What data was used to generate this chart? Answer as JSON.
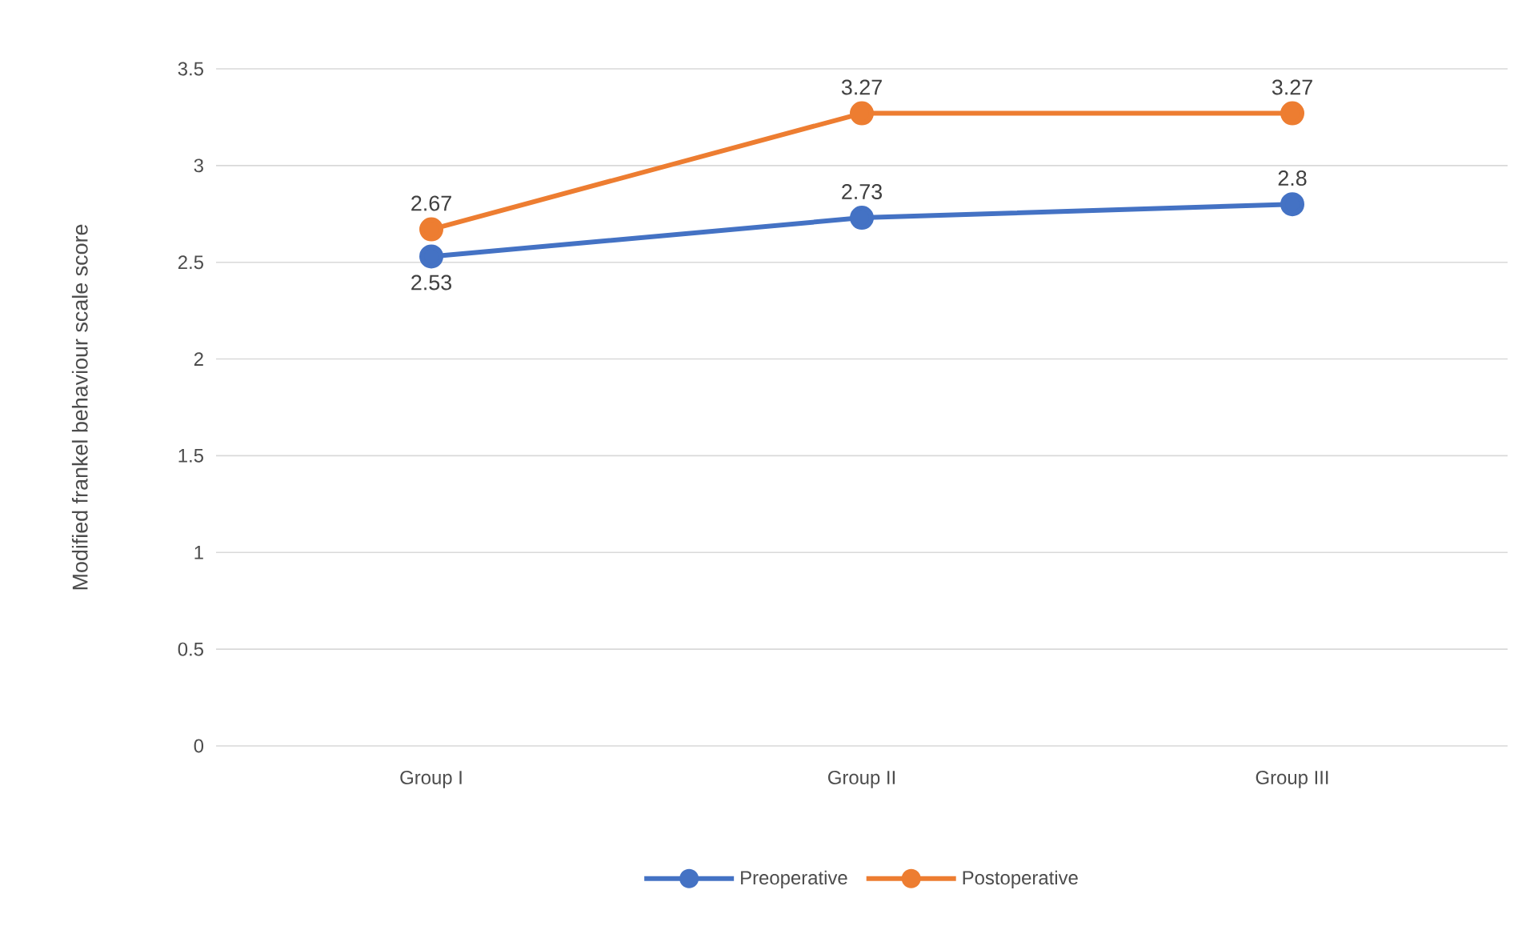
{
  "chart_data": {
    "type": "line",
    "ylabel": "Modified frankel behaviour scale score",
    "categories": [
      "Group I",
      "Group II",
      "Group III"
    ],
    "series": [
      {
        "name": "Preoperative",
        "color": "#4472c4",
        "values": [
          2.53,
          2.73,
          2.8
        ]
      },
      {
        "name": "Postoperative",
        "color": "#ed7d31",
        "values": [
          2.67,
          3.27,
          3.27
        ]
      }
    ],
    "ylim": [
      0,
      3.5
    ],
    "yticks": [
      0,
      0.5,
      1,
      1.5,
      2,
      2.5,
      3,
      3.5
    ],
    "grid": "y",
    "legend": "bottom",
    "marker": "circle",
    "line_style": "solid",
    "data_labels": true
  }
}
